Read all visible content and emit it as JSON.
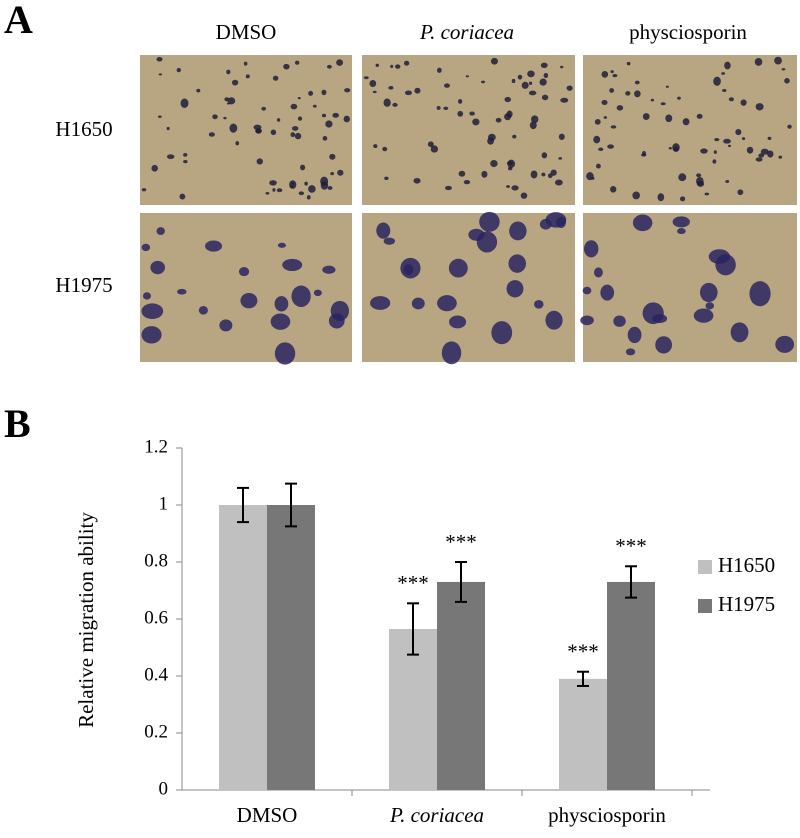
{
  "panel_a": {
    "label": "A",
    "columns": [
      "DMSO",
      "P. coriacea",
      "physciosporin"
    ],
    "rows": [
      "H1650",
      "H1975"
    ]
  },
  "chart_data": {
    "type": "bar",
    "panel_label": "B",
    "y_label": "Relative migration ability",
    "categories": [
      "DMSO",
      "P. coriacea",
      "physciosporin"
    ],
    "series": [
      {
        "name": "H1650",
        "color": "#c0c0c0",
        "values": [
          1,
          0.565,
          0.39
        ],
        "errors": [
          0.06,
          0.09,
          0.025
        ],
        "annotations": [
          null,
          "***",
          "***"
        ]
      },
      {
        "name": "H1975",
        "color": "#777777",
        "values": [
          1,
          0.73,
          0.73
        ],
        "errors": [
          0.075,
          0.07,
          0.055
        ],
        "annotations": [
          null,
          "***",
          "***"
        ]
      }
    ],
    "ylim": [
      0,
      1.2
    ],
    "yticks": [
      0,
      0.2,
      0.4,
      0.6,
      0.8,
      1,
      1.2
    ],
    "legend": "right"
  }
}
